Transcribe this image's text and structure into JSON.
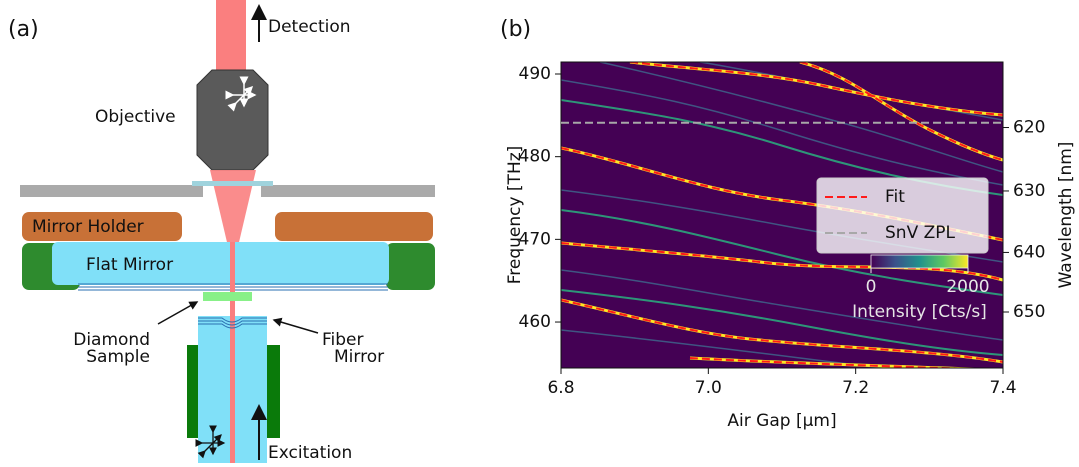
{
  "panel_a": {
    "label": "(a)",
    "detection": "Detection",
    "objective": "Objective",
    "mirror_holder": "Mirror Holder",
    "flat_mirror": "Flat Mirror",
    "diamond_sample": [
      "Diamond",
      "Sample"
    ],
    "fiber_mirror": [
      "Fiber",
      "Mirror"
    ],
    "excitation": "Excitation"
  },
  "chart_data": {
    "type": "heatmap",
    "label": "(b)",
    "xlabel": "Air Gap [μm]",
    "ylabel": "Frequency [THz]",
    "y2label": "Wavelength [nm]",
    "xlim": [
      6.8,
      7.4
    ],
    "xticks": [
      6.8,
      {
        "value": 7.0,
        "label": "7.0"
      },
      7.2,
      7.4
    ],
    "ylim": [
      454.44,
      491.45
    ],
    "yticks": [
      460,
      470,
      480,
      490
    ],
    "y2lim": [
      659.69,
      610.0
    ],
    "y2scale": "inverse",
    "y2ticks": [
      620,
      630,
      640,
      650
    ],
    "series": [
      {
        "name": "Fit",
        "color": "#ff1a1a"
      },
      {
        "name": "SnV ZPL",
        "color": "#a8a8a8",
        "values": [
          484.1
        ]
      }
    ],
    "colorbar": {
      "label": "Intensity [Cts/s]",
      "clim": [
        0,
        2000
      ],
      "ticks": [
        0,
        2000
      ]
    }
  }
}
